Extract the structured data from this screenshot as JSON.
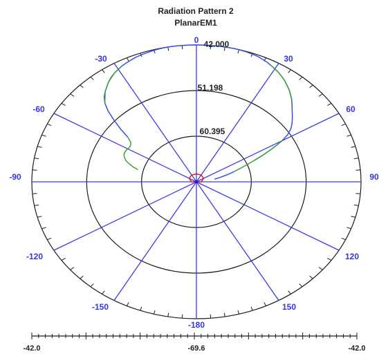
{
  "chart_data": {
    "type": "polar",
    "title": "Radiation Pattern 2",
    "subtitle": "PlanarEM1",
    "ring_labels": [
      "42.000",
      "51.198",
      "60.395"
    ],
    "angle_labels": [
      "0",
      "30",
      "60",
      "90",
      "120",
      "150",
      "-180",
      "-150",
      "-120",
      "-90",
      "-60",
      "-30"
    ],
    "angle_values": [
      0,
      30,
      60,
      90,
      120,
      150,
      180,
      -150,
      -120,
      -90,
      -60,
      -30
    ],
    "scale_labels": [
      "-42.0",
      "-69.6",
      "-42.0"
    ],
    "rlim": [
      -69.6,
      -42.0
    ],
    "ring_values": [
      -42.0,
      -51.198,
      -60.395
    ],
    "series": [
      {
        "color": "#3a4ee6",
        "theta": [
          -52,
          -50,
          -48,
          -46,
          -44,
          -42,
          -40,
          -38,
          -36,
          -34,
          -32,
          -30,
          -28,
          -26,
          -24,
          -22,
          -20,
          -18,
          -16,
          -14,
          -12,
          -10,
          -8,
          -6,
          -4,
          -2,
          0,
          2,
          4,
          6,
          8,
          10,
          12,
          14,
          16,
          18,
          20,
          22,
          24,
          26,
          28,
          30,
          32,
          34,
          36,
          38,
          40,
          42,
          44,
          46,
          48,
          50,
          52,
          54,
          56,
          58,
          60,
          62,
          64,
          66
        ],
        "r": [
          -55.0,
          -53.0,
          -51.0,
          -49.0,
          -47.5,
          -46.5,
          -45.8,
          -45.2,
          -44.6,
          -44.1,
          -43.7,
          -43.4,
          -43.1,
          -42.9,
          -42.7,
          -42.5,
          -42.4,
          -42.3,
          -42.2,
          -42.1,
          -42.05,
          -42.0,
          -42.0,
          -42.0,
          -42.0,
          -42.0,
          -42.0,
          -42.0,
          -42.0,
          -42.0,
          -42.0,
          -42.0,
          -42.0,
          -42.0,
          -42.05,
          -42.1,
          -42.2,
          -42.3,
          -42.5,
          -42.7,
          -43.0,
          -43.3,
          -43.6,
          -44.0,
          -44.4,
          -44.9,
          -45.4,
          -46.0,
          -46.6,
          -47.3,
          -48.0,
          -48.6,
          -49.2,
          -49.8,
          -50.5,
          -51.5,
          -53.0,
          -55.0,
          -57.0,
          -59.0
        ]
      },
      {
        "color": "#3ca03c",
        "theta": [
          -76,
          -74,
          -72,
          -70,
          -68,
          -66,
          -64,
          -62,
          -60,
          -58,
          -56,
          -54,
          -52
        ],
        "r": [
          -59.5,
          -58.5,
          -57.7,
          -57.0,
          -56.6,
          -56.3,
          -56.2,
          -56.2,
          -56.3,
          -56.4,
          -56.3,
          -56.0,
          -55.0
        ]
      },
      {
        "color": "#3ca03c",
        "theta": [
          -44,
          -40,
          -36,
          -32,
          -28
        ],
        "r": [
          -47.5,
          -45.8,
          -44.6,
          -43.7,
          -43.1
        ]
      },
      {
        "color": "#3ca03c",
        "theta": [
          28,
          32,
          36,
          40,
          44
        ],
        "r": [
          -43.0,
          -43.6,
          -44.4,
          -45.4,
          -46.6
        ]
      },
      {
        "color": "#3ca03c",
        "theta": [
          60,
          62,
          64,
          66,
          68,
          70,
          72
        ],
        "r": [
          -53.0,
          -55.0,
          -57.0,
          -59.0,
          -60.5,
          -62.0,
          -63.0
        ]
      },
      {
        "color": "#3a4ee6",
        "theta": [
          72,
          74,
          76,
          78,
          80
        ],
        "r": [
          -63.0,
          -64.0,
          -65.0,
          -65.8,
          -66.5
        ]
      },
      {
        "color": "#e02020",
        "theta": [
          -180,
          -150,
          -120,
          -90,
          -60,
          -30,
          0,
          30,
          60,
          90,
          120,
          150,
          180
        ],
        "r": [
          -69.6,
          -69.6,
          -69.6,
          -68.8,
          -68.2,
          -68.0,
          -68.0,
          -68.0,
          -68.2,
          -68.8,
          -69.6,
          -69.6,
          -69.6
        ]
      }
    ]
  }
}
